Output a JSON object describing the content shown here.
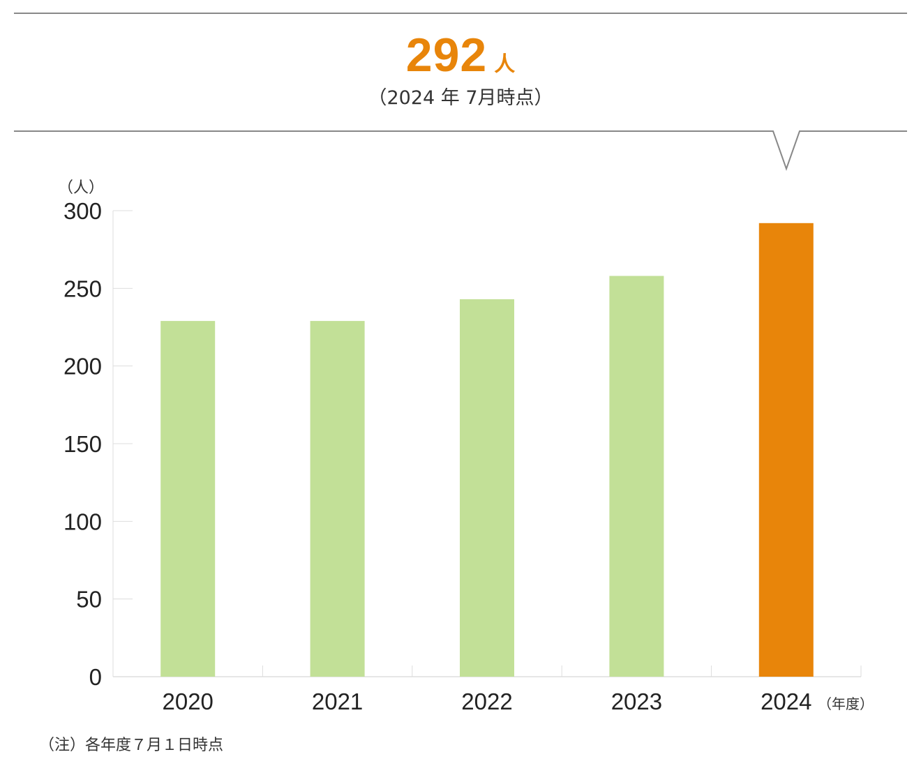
{
  "headline": {
    "value": "292",
    "unit": "人",
    "note": "（2024 年 7月時点）"
  },
  "footnote": "（注）各年度７月１日時点",
  "colors": {
    "accent": "#e8850a",
    "bar_normal": "#c2e097",
    "bar_highlight": "#e8850a",
    "rule": "#888888"
  },
  "chart_data": {
    "type": "bar",
    "categories": [
      "2020",
      "2021",
      "2022",
      "2023",
      "2024"
    ],
    "values": [
      229,
      229,
      243,
      258,
      292
    ],
    "highlight_index": 4,
    "ylabel": "（人）",
    "xlabel": "（年度）",
    "ylim": [
      0,
      300
    ],
    "yticks": [
      "0",
      "50",
      "100",
      "150",
      "200",
      "250",
      "300"
    ],
    "grid": false
  }
}
